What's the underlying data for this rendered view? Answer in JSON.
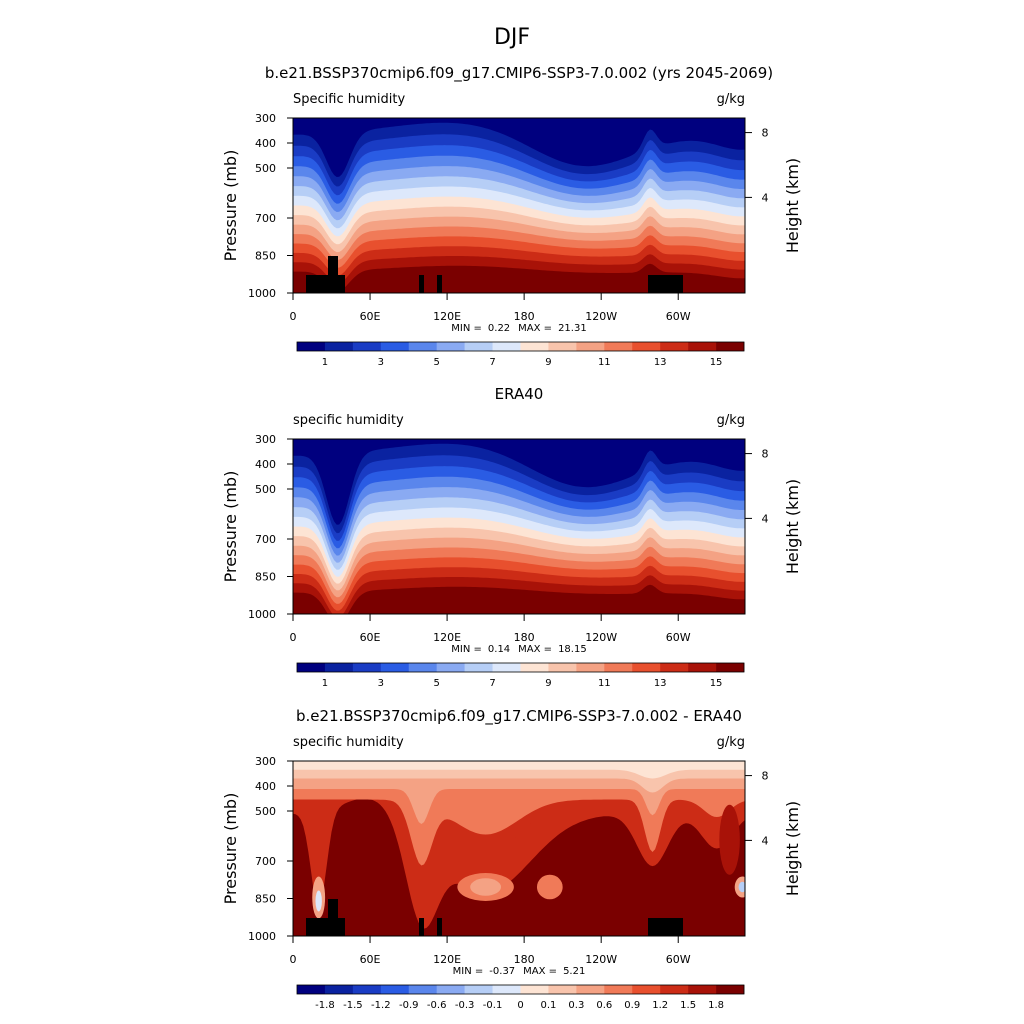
{
  "title": "DJF",
  "panels": [
    {
      "type": "contour",
      "title": "b.e21.BSSP370cmip6.f09_g17.CMIP6-SSP3-7.0.002 (yrs 2045-2069)",
      "left_label": "Specific humidity",
      "right_label": "g/kg",
      "ylabel": "Pressure (mb)",
      "ylim": [
        1000,
        300
      ],
      "yticks": [
        300,
        400,
        500,
        700,
        850,
        1000
      ],
      "y2label": "Height (km)",
      "y2lim": [
        -1.9,
        8.9
      ],
      "y2ticks": [
        8,
        4
      ],
      "xlim": [
        0,
        352
      ],
      "xticks": [
        0,
        {
          "value": 60,
          "label": "60E"
        },
        {
          "value": 120,
          "label": "120E"
        },
        180,
        {
          "value": 240,
          "label": "120W"
        },
        {
          "value": 300,
          "label": "60W"
        }
      ],
      "min_label": "MIN =",
      "min": 0.22,
      "max_label": "MAX =",
      "max": 21.31,
      "colorbar": {
        "colors": [
          "#00007f",
          "#0a22a0",
          "#1a3cc4",
          "#2a5ce4",
          "#5a86ec",
          "#8aaaf2",
          "#b6cef6",
          "#dde8fb",
          "#fde4d4",
          "#f8c4ac",
          "#f4a284",
          "#f07a58",
          "#e8502e",
          "#cc2c16",
          "#a81208",
          "#7a0000"
        ],
        "labels": [
          1,
          3,
          5,
          7,
          9,
          11,
          13,
          15
        ]
      }
    },
    {
      "type": "contour",
      "title": "ERA40",
      "left_label": "specific humidity",
      "right_label": "g/kg",
      "ylabel": "Pressure (mb)",
      "ylim": [
        1000,
        300
      ],
      "yticks": [
        300,
        400,
        500,
        700,
        850,
        1000
      ],
      "y2label": "Height (km)",
      "y2lim": [
        -1.9,
        8.9
      ],
      "y2ticks": [
        8,
        4
      ],
      "xlim": [
        0,
        352
      ],
      "xticks": [
        0,
        {
          "value": 60,
          "label": "60E"
        },
        {
          "value": 120,
          "label": "120E"
        },
        180,
        {
          "value": 240,
          "label": "120W"
        },
        {
          "value": 300,
          "label": "60W"
        }
      ],
      "min_label": "MIN =",
      "min": 0.14,
      "max_label": "MAX =",
      "max": 18.15,
      "colorbar": {
        "colors": [
          "#00007f",
          "#0a22a0",
          "#1a3cc4",
          "#2a5ce4",
          "#5a86ec",
          "#8aaaf2",
          "#b6cef6",
          "#dde8fb",
          "#fde4d4",
          "#f8c4ac",
          "#f4a284",
          "#f07a58",
          "#e8502e",
          "#cc2c16",
          "#a81208",
          "#7a0000"
        ],
        "labels": [
          1,
          3,
          5,
          7,
          9,
          11,
          13,
          15
        ]
      }
    },
    {
      "type": "difference",
      "title": "b.e21.BSSP370cmip6.f09_g17.CMIP6-SSP3-7.0.002 - ERA40",
      "left_label": "specific humidity",
      "right_label": "g/kg",
      "ylabel": "Pressure (mb)",
      "ylim": [
        1000,
        300
      ],
      "yticks": [
        300,
        400,
        500,
        700,
        850,
        1000
      ],
      "y2label": "Height (km)",
      "y2lim": [
        -1.9,
        8.9
      ],
      "y2ticks": [
        8,
        4
      ],
      "xlim": [
        0,
        352
      ],
      "xticks": [
        0,
        {
          "value": 60,
          "label": "60E"
        },
        {
          "value": 120,
          "label": "120E"
        },
        180,
        {
          "value": 240,
          "label": "120W"
        },
        {
          "value": 300,
          "label": "60W"
        }
      ],
      "min_label": "MIN =",
      "min": -0.37,
      "max_label": "MAX =",
      "max": 5.21,
      "colorbar": {
        "colors": [
          "#00007f",
          "#0a22a0",
          "#1a3cc4",
          "#2a5ce4",
          "#5a86ec",
          "#8aaaf2",
          "#b6cef6",
          "#dde8fb",
          "#fde4d4",
          "#f8c4ac",
          "#f4a284",
          "#f07a58",
          "#e8502e",
          "#cc2c16",
          "#a81208",
          "#7a0000"
        ],
        "labels": [
          -1.8,
          -1.5,
          -1.2,
          -0.9,
          -0.6,
          -0.3,
          -0.1,
          0,
          0.1,
          0.3,
          0.6,
          0.9,
          1.2,
          1.5,
          1.8
        ]
      }
    }
  ]
}
